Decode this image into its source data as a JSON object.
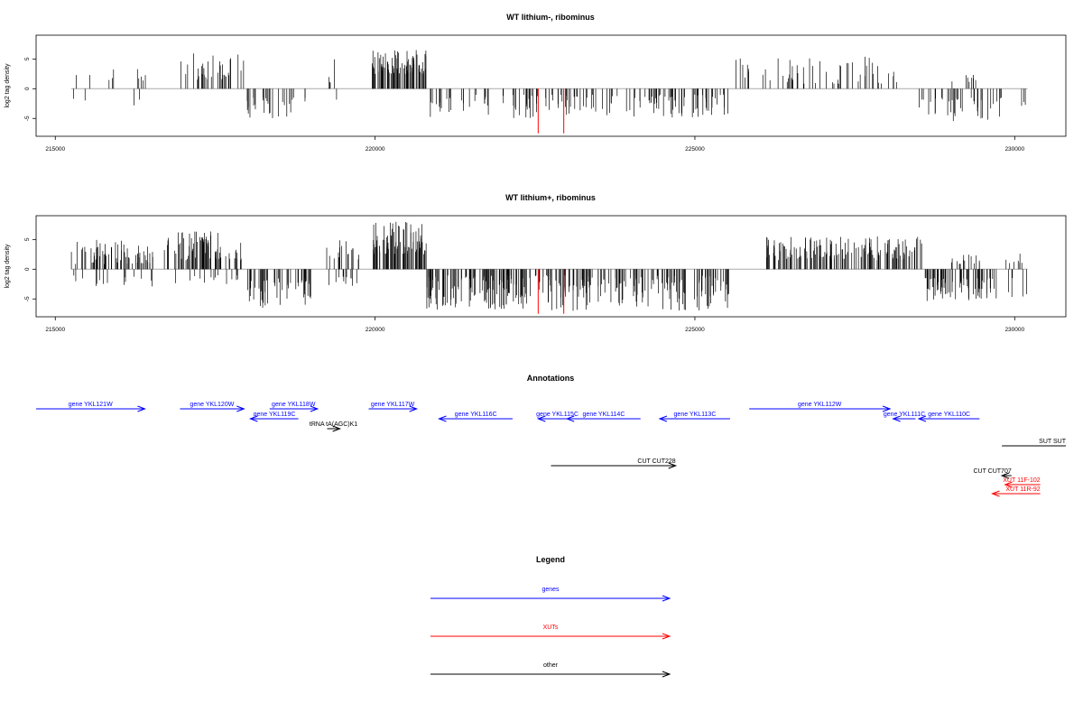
{
  "colors": {
    "genes": "#0000ff",
    "XUTs": "#ff0000",
    "other": "#000000",
    "highlight": "#ff0000",
    "zero_line": "#aaaaaa"
  },
  "chart_data": [
    {
      "type": "bar",
      "title": "WT lithium-, ribominus",
      "ylabel": "log2 tag density",
      "xlim": [
        214700,
        230800
      ],
      "ylim": [
        -8,
        9
      ],
      "x_ticks": [
        215000,
        220000,
        225000,
        230000
      ],
      "y_ticks": [
        -5,
        0,
        5
      ],
      "x_tick_labels": [
        "215000",
        "220000",
        "225000",
        "230000"
      ],
      "y_tick_labels": [
        "-5",
        "0",
        "5"
      ],
      "data_range": [
        215250,
        230200
      ],
      "highlight_x": [
        222550,
        222950
      ],
      "highlight_depth": -7.5,
      "segments": [
        {
          "start": 215250,
          "end": 216550,
          "sign": 1,
          "density": 0.008,
          "max": 4.5,
          "min": 0.8
        },
        {
          "start": 215250,
          "end": 216550,
          "sign": -1,
          "density": 0.003,
          "max": 3.0,
          "min": 1.5
        },
        {
          "start": 216950,
          "end": 217950,
          "sign": 1,
          "density": 0.035,
          "max": 6.0,
          "min": 1.5
        },
        {
          "start": 218000,
          "end": 218950,
          "sign": -1,
          "density": 0.03,
          "max": 5.0,
          "min": 1.5
        },
        {
          "start": 219200,
          "end": 219450,
          "sign": 1,
          "density": 0.01,
          "max": 2.0,
          "min": 0.8
        },
        {
          "start": 219350,
          "end": 219450,
          "sign": 1,
          "density": 0.01,
          "max": 5.0,
          "min": 4.0
        },
        {
          "start": 219350,
          "end": 219450,
          "sign": -1,
          "density": 0.01,
          "max": 2.0,
          "min": 1.0
        },
        {
          "start": 219950,
          "end": 220800,
          "sign": 1,
          "density": 0.09,
          "max": 6.5,
          "min": 2.5
        },
        {
          "start": 220850,
          "end": 225550,
          "sign": -1,
          "density": 0.03,
          "max": 5.0,
          "min": 1.0
        },
        {
          "start": 225600,
          "end": 228300,
          "sign": 1,
          "density": 0.02,
          "max": 5.5,
          "min": 0.8
        },
        {
          "start": 228500,
          "end": 229800,
          "sign": -1,
          "density": 0.03,
          "max": 5.5,
          "min": 1.5
        },
        {
          "start": 229000,
          "end": 229400,
          "sign": 1,
          "density": 0.02,
          "max": 2.5,
          "min": 0.8
        },
        {
          "start": 229900,
          "end": 230200,
          "sign": -1,
          "density": 0.01,
          "max": 3.0,
          "min": 1.0
        }
      ]
    },
    {
      "type": "bar",
      "title": "WT lithium+, ribominus",
      "ylabel": "log2 tag density",
      "xlim": [
        214700,
        230800
      ],
      "ylim": [
        -8,
        9
      ],
      "x_ticks": [
        215000,
        220000,
        225000,
        230000
      ],
      "y_ticks": [
        -5,
        0,
        5
      ],
      "x_tick_labels": [
        "215000",
        "220000",
        "225000",
        "230000"
      ],
      "y_tick_labels": [
        "-5",
        "0",
        "5"
      ],
      "data_range": [
        215250,
        230200
      ],
      "highlight_x": [
        222550,
        222950
      ],
      "highlight_depth": -7.5,
      "segments": [
        {
          "start": 215250,
          "end": 216550,
          "sign": 1,
          "density": 0.05,
          "max": 5.0,
          "min": 0.8
        },
        {
          "start": 215250,
          "end": 216550,
          "sign": -1,
          "density": 0.012,
          "max": 3.0,
          "min": 1.0
        },
        {
          "start": 216700,
          "end": 217950,
          "sign": 1,
          "density": 0.06,
          "max": 6.5,
          "min": 1.5
        },
        {
          "start": 216700,
          "end": 217950,
          "sign": -1,
          "density": 0.012,
          "max": 2.5,
          "min": 1.0
        },
        {
          "start": 218000,
          "end": 219000,
          "sign": -1,
          "density": 0.05,
          "max": 6.5,
          "min": 1.5
        },
        {
          "start": 219200,
          "end": 219750,
          "sign": 1,
          "density": 0.03,
          "max": 5.0,
          "min": 0.8
        },
        {
          "start": 219200,
          "end": 219750,
          "sign": -1,
          "density": 0.02,
          "max": 3.0,
          "min": 1.0
        },
        {
          "start": 219950,
          "end": 220800,
          "sign": 1,
          "density": 0.1,
          "max": 8.0,
          "min": 2.5
        },
        {
          "start": 220800,
          "end": 225550,
          "sign": -1,
          "density": 0.06,
          "max": 7.0,
          "min": 1.0
        },
        {
          "start": 226100,
          "end": 228550,
          "sign": 1,
          "density": 0.06,
          "max": 5.5,
          "min": 1.5
        },
        {
          "start": 228600,
          "end": 229750,
          "sign": -1,
          "density": 0.06,
          "max": 5.5,
          "min": 1.5
        },
        {
          "start": 229000,
          "end": 229500,
          "sign": 1,
          "density": 0.03,
          "max": 2.5,
          "min": 0.8
        },
        {
          "start": 229850,
          "end": 230200,
          "sign": 1,
          "density": 0.02,
          "max": 3.0,
          "min": 0.8
        },
        {
          "start": 229850,
          "end": 230200,
          "sign": -1,
          "density": 0.015,
          "max": 5.0,
          "min": 1.0
        }
      ]
    }
  ],
  "annotations": {
    "title": "Annotations",
    "xlim": [
      214700,
      230800
    ],
    "features": [
      {
        "label": "gene YKL121W",
        "start": 214700,
        "end": 216400,
        "dir": 1,
        "row": 0,
        "cls": "genes"
      },
      {
        "label": "gene YKL120W",
        "start": 216950,
        "end": 217950,
        "dir": 1,
        "row": 0,
        "cls": "genes"
      },
      {
        "label": "gene YKL118W",
        "start": 218350,
        "end": 219100,
        "dir": 1,
        "row": 0,
        "cls": "genes"
      },
      {
        "label": "gene YKL119C",
        "start": 218050,
        "end": 218800,
        "dir": -1,
        "row": 1,
        "cls": "genes"
      },
      {
        "label": "gene YKL117W",
        "start": 219900,
        "end": 220650,
        "dir": 1,
        "row": 0,
        "cls": "genes"
      },
      {
        "label": "tRNA tA(AGC)K1",
        "start": 219250,
        "end": 219450,
        "dir": 1,
        "row": 2,
        "cls": "other"
      },
      {
        "label": "gene YKL116C",
        "start": 221000,
        "end": 222150,
        "dir": -1,
        "row": 1,
        "cls": "genes"
      },
      {
        "label": "gene YKL115C",
        "start": 222550,
        "end": 223150,
        "dir": -1,
        "row": 1,
        "cls": "genes"
      },
      {
        "label": "gene YKL114C",
        "start": 223000,
        "end": 224150,
        "dir": -1,
        "row": 1,
        "cls": "genes"
      },
      {
        "label": "gene YKL113C",
        "start": 224450,
        "end": 225550,
        "dir": -1,
        "row": 1,
        "cls": "genes"
      },
      {
        "label": "gene YKL112W",
        "start": 225850,
        "end": 228050,
        "dir": 1,
        "row": 0,
        "cls": "genes"
      },
      {
        "label": "gene YKL111C",
        "start": 228100,
        "end": 228450,
        "dir": -1,
        "row": 1,
        "cls": "genes"
      },
      {
        "label": "gene YKL110C",
        "start": 228500,
        "end": 229450,
        "dir": -1,
        "row": 1,
        "cls": "genes"
      },
      {
        "label": "SUT SUT",
        "start": 229800,
        "end": 230800,
        "dir": 0,
        "row": 3,
        "cls": "other"
      },
      {
        "label": "CUT CUT228",
        "start": 222750,
        "end": 224700,
        "dir": 1,
        "row": 4,
        "cls": "other"
      },
      {
        "label": "CUT CUT707",
        "start": 229800,
        "end": 229950,
        "dir": -1,
        "row": 5,
        "cls": "other"
      },
      {
        "label": "XUT 11F-102",
        "start": 229850,
        "end": 230400,
        "dir": -1,
        "row": 6,
        "cls": "XUTs"
      },
      {
        "label": "XUT 11R-92",
        "start": 229650,
        "end": 230400,
        "dir": -1,
        "row": 7,
        "cls": "XUTs"
      }
    ]
  },
  "legend": {
    "title": "Legend",
    "items": [
      {
        "label": "genes",
        "cls": "genes"
      },
      {
        "label": "XUTs",
        "cls": "XUTs"
      },
      {
        "label": "other",
        "cls": "other"
      }
    ]
  }
}
